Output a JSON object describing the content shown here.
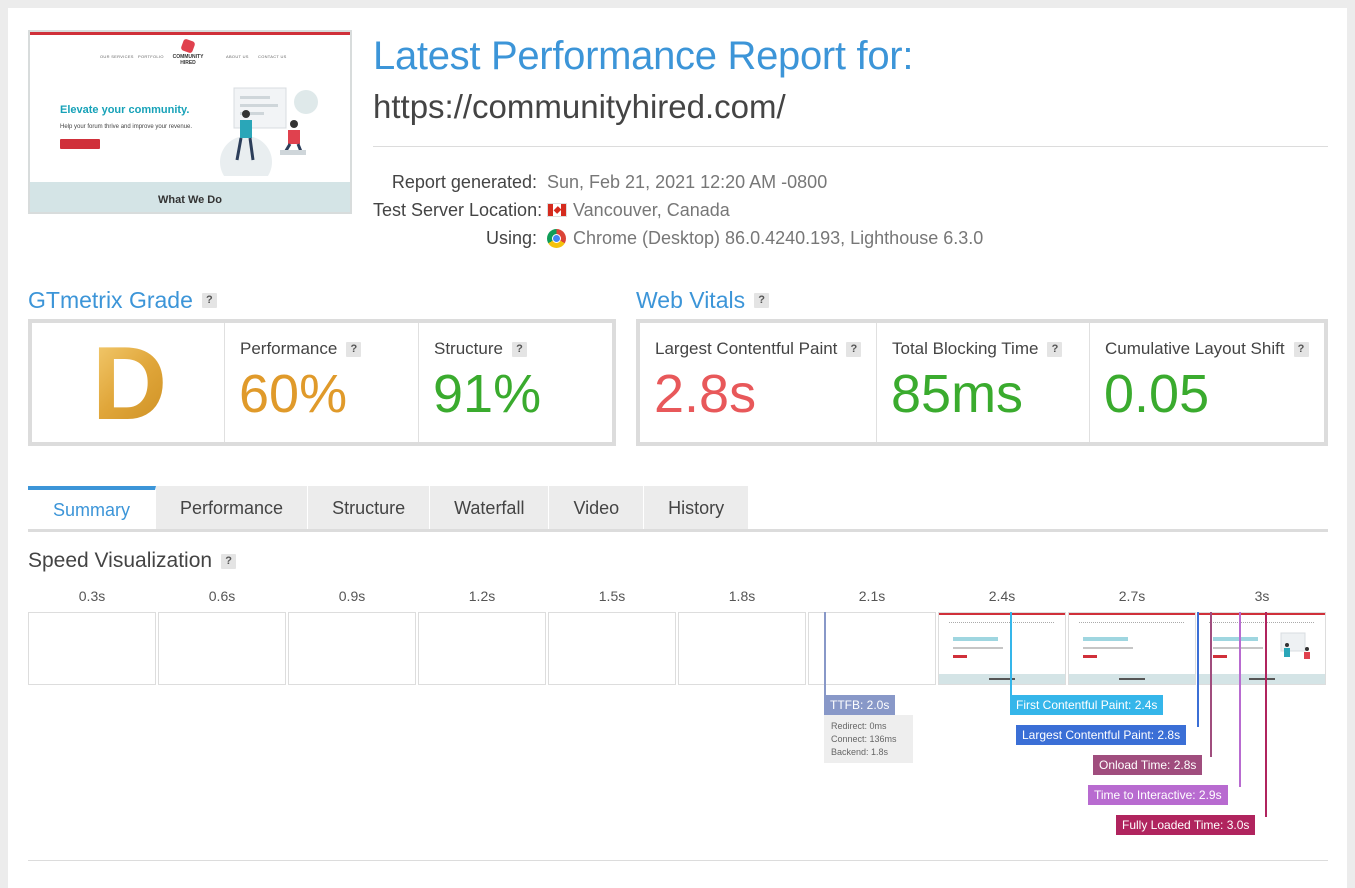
{
  "header": {
    "title": "Latest Performance Report for:",
    "url": "https://communityhired.com/",
    "report_generated_label": "Report generated:",
    "report_generated_value": "Sun, Feb 21, 2021 12:20 AM -0800",
    "location_label": "Test Server Location:",
    "location_value": "Vancouver, Canada",
    "using_label": "Using:",
    "using_value": "Chrome (Desktop) 86.0.4240.193, Lighthouse 6.3.0"
  },
  "thumbnail": {
    "nav_items": [
      "OUR SERVICES",
      "PORTFOLIO",
      "ABOUT US",
      "CONTACT US"
    ],
    "logo_text": "COMMUNITY HIRED",
    "hero_title": "Elevate your community.",
    "hero_subtitle": "Help your forum thrive and improve your revenue.",
    "band_text": "What We Do"
  },
  "grade": {
    "heading": "GTmetrix Grade",
    "help": "?",
    "letter": "D",
    "performance_label": "Performance",
    "performance_value": "60%",
    "structure_label": "Structure",
    "structure_value": "91%"
  },
  "vitals": {
    "heading": "Web Vitals",
    "help": "?",
    "lcp_label": "Largest Contentful Paint",
    "lcp_value": "2.8s",
    "tbt_label": "Total Blocking Time",
    "tbt_value": "85ms",
    "cls_label": "Cumulative Layout Shift",
    "cls_value": "0.05"
  },
  "colors": {
    "accent_blue": "#3c95d8",
    "grade_orange": "#e09a2a",
    "good_green": "#3aab2e",
    "bad_red": "#e8585a"
  },
  "tabs": [
    "Summary",
    "Performance",
    "Structure",
    "Waterfall",
    "Video",
    "History"
  ],
  "active_tab": "Summary",
  "speed": {
    "heading": "Speed Visualization",
    "help": "?",
    "frame_times": [
      "0.3s",
      "0.6s",
      "0.9s",
      "1.2s",
      "1.5s",
      "1.8s",
      "2.1s",
      "2.4s",
      "2.7s",
      "3s"
    ],
    "ttfb_label": "TTFB: 2.0s",
    "ttfb_redirect": "Redirect: 0ms",
    "ttfb_connect": "Connect: 136ms",
    "ttfb_backend": "Backend: 1.8s",
    "fcp_label": "First Contentful Paint: 2.4s",
    "lcp_label": "Largest Contentful Paint: 2.8s",
    "onload_label": "Onload Time: 2.8s",
    "tti_label": "Time to Interactive: 2.9s",
    "fully_loaded_label": "Fully Loaded Time: 3.0s"
  }
}
